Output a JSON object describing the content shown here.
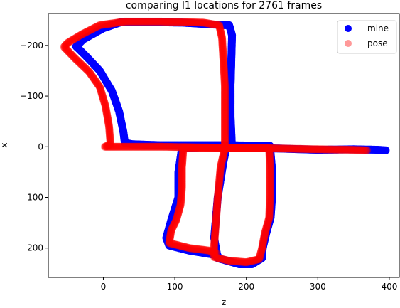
{
  "chart_data": {
    "type": "scatter",
    "title": "comparing l1 locations for 2761 frames",
    "xlabel": "z",
    "ylabel": "x",
    "xlim": [
      -77,
      414
    ],
    "ylim": [
      258,
      -263
    ],
    "y_inverted": true,
    "x_ticks": [
      0,
      100,
      200,
      300,
      400
    ],
    "y_ticks": [
      -200,
      -100,
      0,
      100,
      200
    ],
    "x_tick_labels": [
      "0",
      "100",
      "200",
      "300",
      "400"
    ],
    "y_tick_labels": [
      "−200",
      "−100",
      "0",
      "100",
      "200"
    ],
    "grid": false,
    "legend_position": "top-right",
    "series": [
      {
        "name": "mine",
        "color": "#0000ff",
        "alpha": 1.0,
        "path": [
          [
            395,
            7
          ],
          [
            385,
            6
          ],
          [
            350,
            5
          ],
          [
            300,
            6
          ],
          [
            233,
            3
          ],
          [
            180,
            3
          ],
          [
            178,
            -60
          ],
          [
            178,
            -120
          ],
          [
            179,
            -170
          ],
          [
            180,
            -220
          ],
          [
            176,
            -240
          ],
          [
            168,
            -240
          ],
          [
            110,
            -245
          ],
          [
            60,
            -246
          ],
          [
            25,
            -246
          ],
          [
            0,
            -234
          ],
          [
            -28,
            -212
          ],
          [
            -38,
            -198
          ],
          [
            -25,
            -180
          ],
          [
            -5,
            -150
          ],
          [
            12,
            -110
          ],
          [
            22,
            -70
          ],
          [
            28,
            -30
          ],
          [
            30,
            -8
          ],
          [
            40,
            -5
          ],
          [
            80,
            -3
          ],
          [
            170,
            -3
          ],
          [
            233,
            -2
          ],
          [
            236,
            45
          ],
          [
            236,
            100
          ],
          [
            234,
            140
          ],
          [
            228,
            170
          ],
          [
            223,
            200
          ],
          [
            222,
            220
          ],
          [
            208,
            232
          ],
          [
            190,
            232
          ],
          [
            160,
            220
          ],
          [
            155,
            180
          ],
          [
            160,
            100
          ],
          [
            168,
            30
          ],
          [
            172,
            3
          ],
          [
            170,
            0
          ],
          [
            110,
            2
          ],
          [
            105,
            50
          ],
          [
            105,
            100
          ],
          [
            96,
            140
          ],
          [
            88,
            180
          ],
          [
            92,
            195
          ],
          [
            120,
            205
          ],
          [
            150,
            212
          ],
          [
            160,
            215
          ]
        ]
      },
      {
        "name": "pose",
        "color": "#ff0000",
        "alpha": 0.4,
        "path": [
          [
            369,
            7
          ],
          [
            350,
            6
          ],
          [
            300,
            5
          ],
          [
            233,
            3
          ],
          [
            170,
            3
          ],
          [
            170,
            -60
          ],
          [
            170,
            -120
          ],
          [
            168,
            -170
          ],
          [
            166,
            -215
          ],
          [
            162,
            -240
          ],
          [
            140,
            -245
          ],
          [
            80,
            -247
          ],
          [
            30,
            -247
          ],
          [
            -5,
            -240
          ],
          [
            -30,
            -222
          ],
          [
            -50,
            -205
          ],
          [
            -55,
            -197
          ],
          [
            -40,
            -175
          ],
          [
            -20,
            -148
          ],
          [
            -5,
            -118
          ],
          [
            3,
            -80
          ],
          [
            8,
            -40
          ],
          [
            10,
            -5
          ],
          [
            2,
            0
          ],
          [
            20,
            0
          ],
          [
            80,
            0
          ],
          [
            170,
            2
          ],
          [
            232,
            3
          ],
          [
            233,
            40
          ],
          [
            233,
            100
          ],
          [
            232,
            140
          ],
          [
            226,
            170
          ],
          [
            222,
            200
          ],
          [
            218,
            222
          ],
          [
            200,
            228
          ],
          [
            175,
            225
          ],
          [
            155,
            218
          ],
          [
            155,
            195
          ],
          [
            158,
            140
          ],
          [
            160,
            100
          ],
          [
            164,
            40
          ],
          [
            170,
            3
          ],
          [
            112,
            2
          ],
          [
            110,
            40
          ],
          [
            110,
            80
          ],
          [
            108,
            115
          ],
          [
            102,
            145
          ],
          [
            95,
            165
          ],
          [
            92,
            190
          ],
          [
            120,
            200
          ],
          [
            148,
            205
          ],
          [
            158,
            210
          ]
        ]
      }
    ]
  }
}
